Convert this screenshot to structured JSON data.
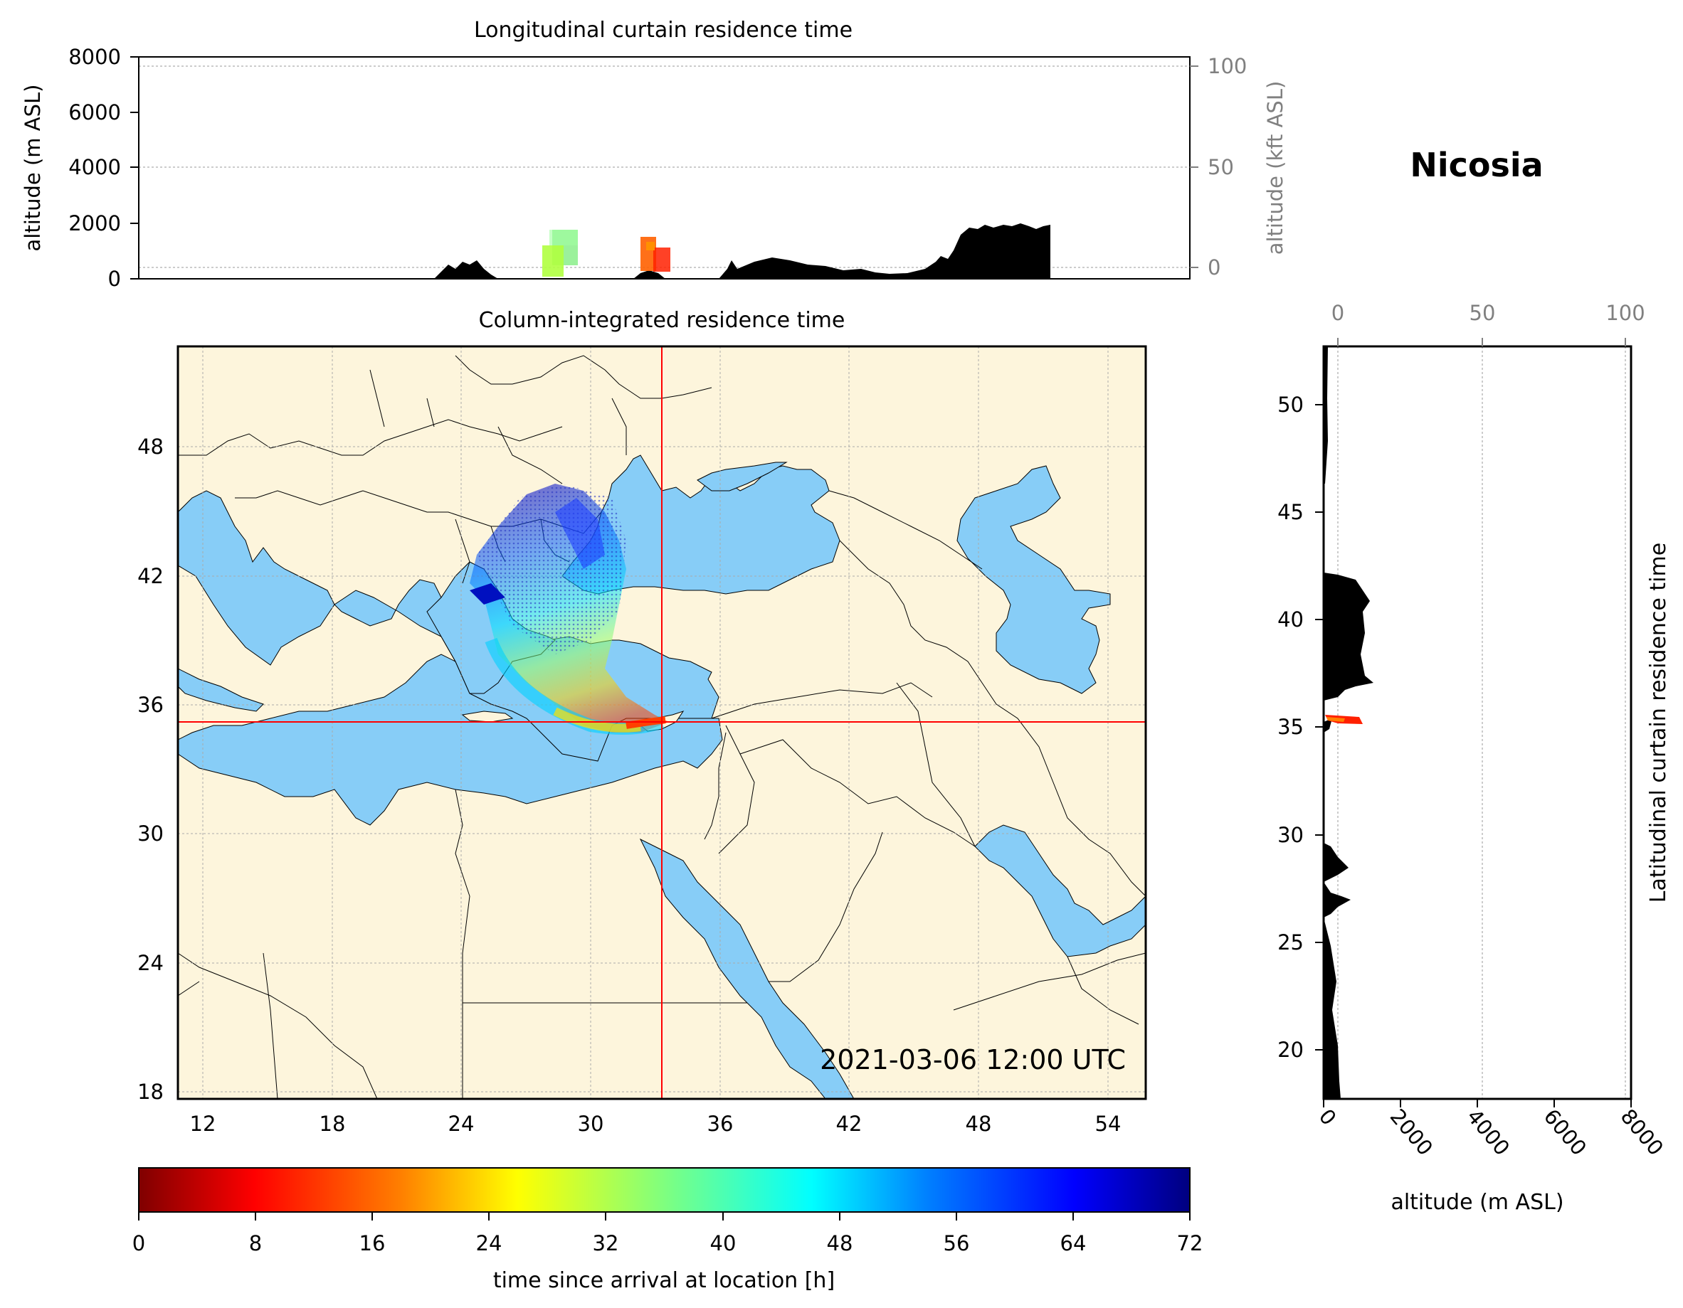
{
  "location_name": "Nicosia",
  "timestamp": "2021-03-06 12:00 UTC",
  "top_panel": {
    "title": "Longitudinal curtain residence time",
    "ylabel_left": "altitude (m ASL)",
    "ylabel_right": "altitude (kft ASL)",
    "yticks_left": [
      "0",
      "2000",
      "4000",
      "6000",
      "8000"
    ],
    "yticks_right": [
      "0",
      "50",
      "100"
    ]
  },
  "map_panel": {
    "title": "Column-integrated residence time",
    "xticks": [
      "12",
      "18",
      "24",
      "30",
      "36",
      "42",
      "48",
      "54"
    ],
    "yticks": [
      "18",
      "24",
      "30",
      "36",
      "42",
      "48"
    ],
    "crosshair": {
      "lon": 33.4,
      "lat": 35.2
    }
  },
  "right_panel": {
    "label": "Latitudinal curtain residence time",
    "xlabel": "altitude (m ASL)",
    "xticks_bottom": [
      "0",
      "2000",
      "4000",
      "6000",
      "8000"
    ],
    "xticks_top": [
      "0",
      "50",
      "100"
    ],
    "yticks": [
      "20",
      "25",
      "30",
      "35",
      "40",
      "45",
      "50"
    ]
  },
  "colorbar": {
    "label": "time since arrival at location [h]",
    "ticks": [
      "0",
      "8",
      "16",
      "24",
      "32",
      "40",
      "48",
      "56",
      "64",
      "72"
    ],
    "colormap": "jet_r",
    "range": [
      0,
      72
    ]
  },
  "colors": {
    "land": "#fdf5dc",
    "sea": "#87cdf7",
    "crosshair": "#ff0000",
    "terrain": "#000000"
  }
}
